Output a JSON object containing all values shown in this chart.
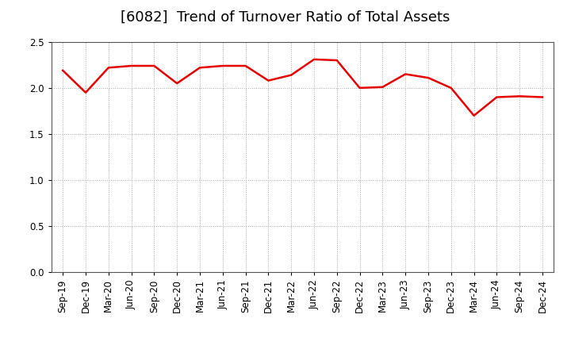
{
  "title": "[6082]  Trend of Turnover Ratio of Total Assets",
  "x_labels": [
    "Sep-19",
    "Dec-19",
    "Mar-20",
    "Jun-20",
    "Sep-20",
    "Dec-20",
    "Mar-21",
    "Jun-21",
    "Sep-21",
    "Dec-21",
    "Mar-22",
    "Jun-22",
    "Sep-22",
    "Dec-22",
    "Mar-23",
    "Jun-23",
    "Sep-23",
    "Dec-23",
    "Mar-24",
    "Jun-24",
    "Sep-24",
    "Dec-24"
  ],
  "values": [
    2.19,
    1.95,
    2.22,
    2.24,
    2.24,
    2.05,
    2.22,
    2.24,
    2.24,
    2.08,
    2.14,
    2.31,
    2.3,
    2.0,
    2.01,
    2.15,
    2.11,
    2.0,
    1.7,
    1.9,
    1.91,
    1.9
  ],
  "line_color": "#e60000",
  "line_width": 1.8,
  "ylim": [
    0.0,
    2.5
  ],
  "yticks": [
    0.0,
    0.5,
    1.0,
    1.5,
    2.0,
    2.5
  ],
  "grid_color": "#aaaaaa",
  "background_color": "#ffffff",
  "title_fontsize": 13,
  "tick_fontsize": 8.5
}
